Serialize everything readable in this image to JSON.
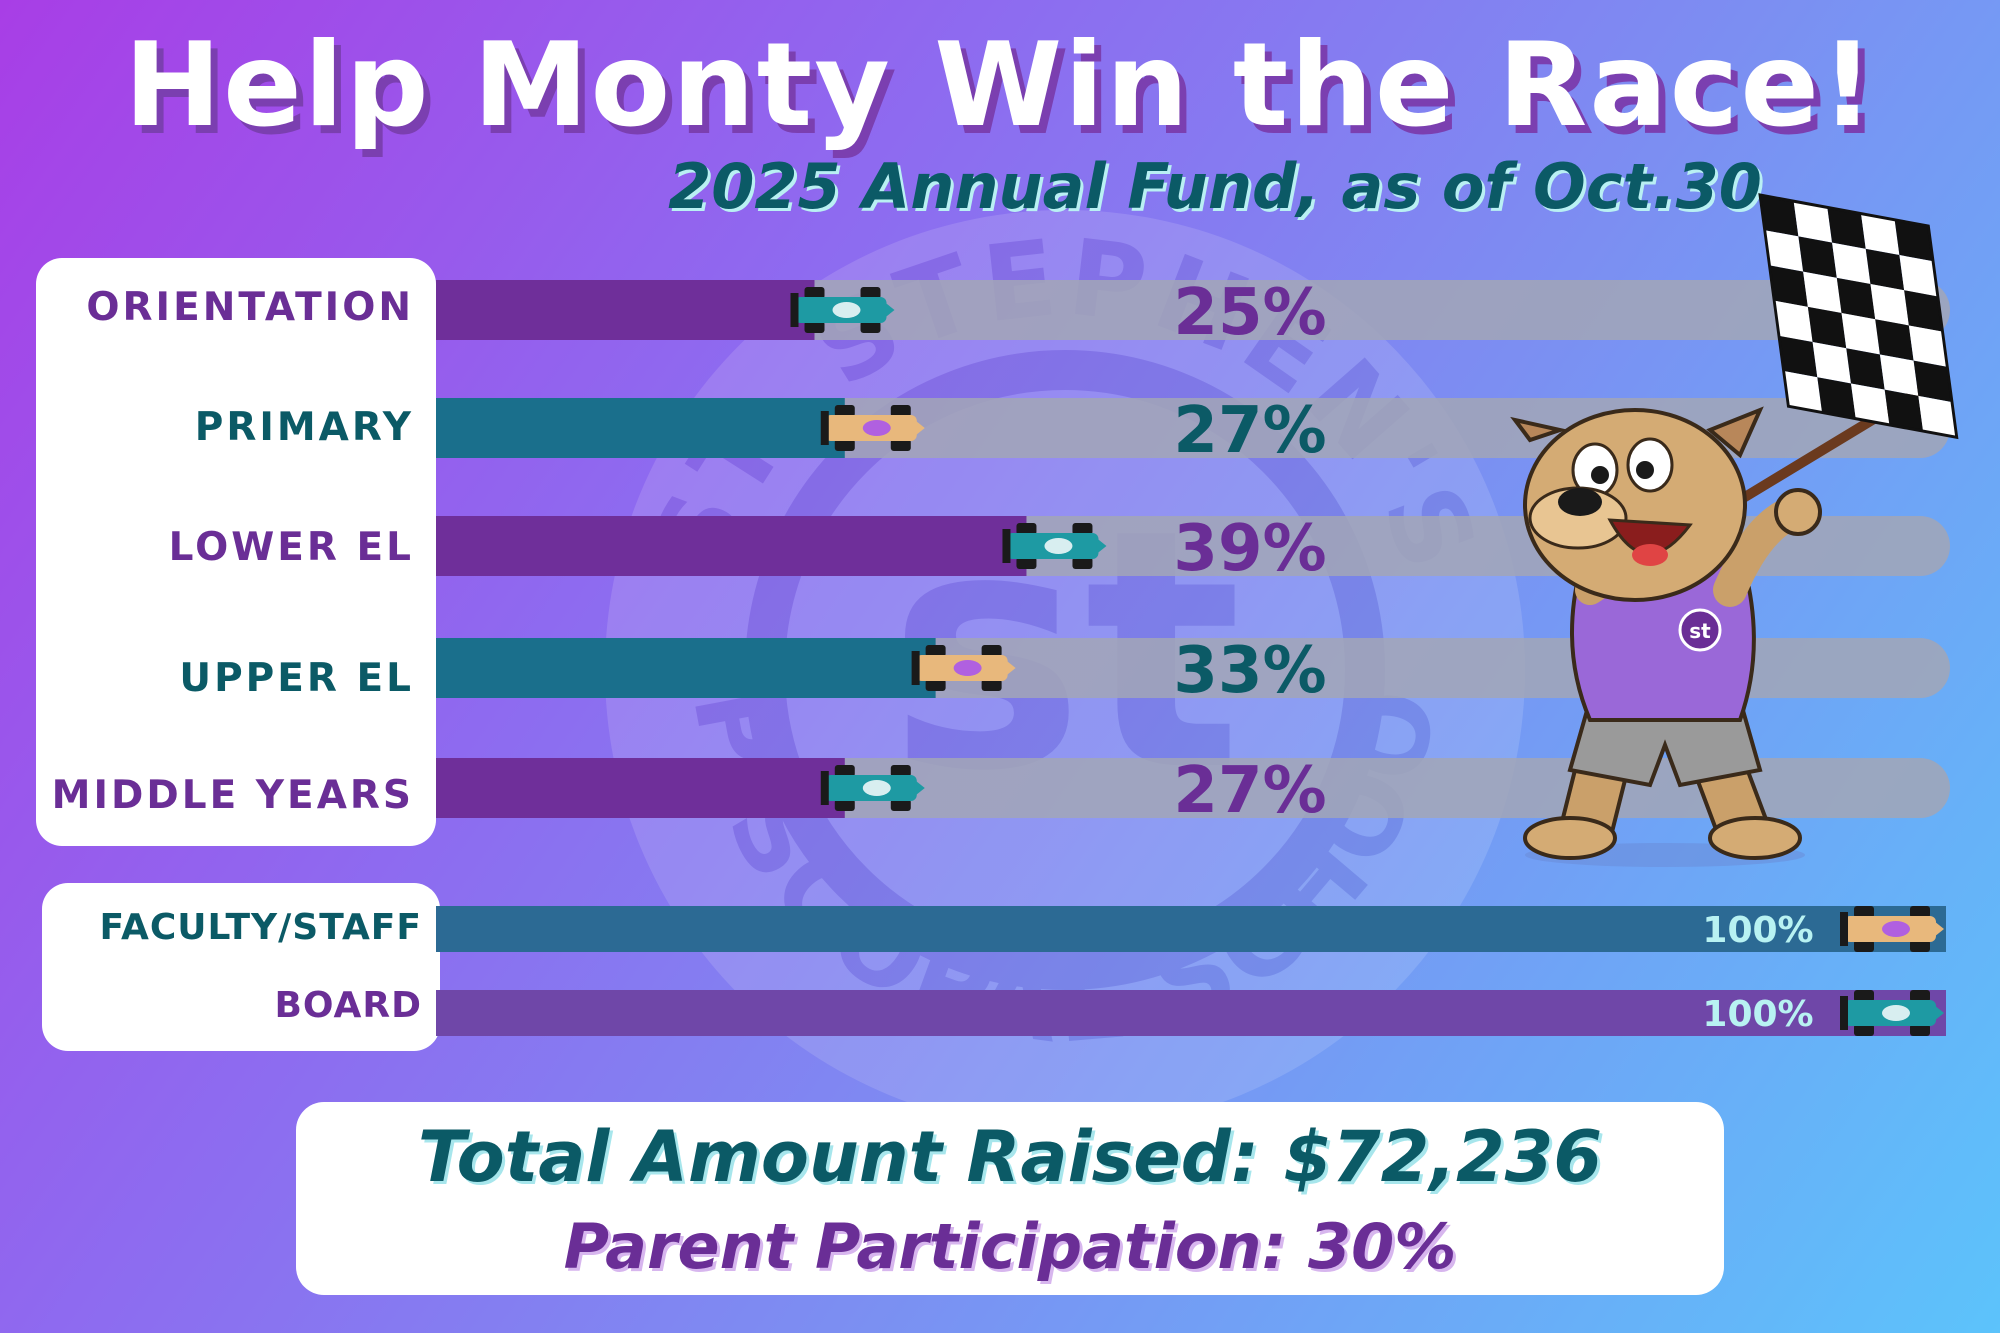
{
  "title": "Help Monty Win the Race!",
  "subtitle": "2025 Annual Fund, as of Oct.30",
  "watermark": {
    "top_text": "ST. STEPHEN'S",
    "bottom_text": "EPISCOPAL SCHOOL",
    "monogram": "st"
  },
  "mascot_badge": "st",
  "colors": {
    "purple": "#6a2e96",
    "teal": "#0b5a66",
    "purple_bar": "#6f2f9a",
    "teal_bar": "#1a6f8c",
    "track": "#a2a6b6"
  },
  "chart_data": {
    "type": "bar",
    "orientation": "horizontal",
    "unit": "%",
    "xlim": [
      0,
      100
    ],
    "categories": [
      "ORIENTATION",
      "PRIMARY",
      "LOWER EL",
      "UPPER EL",
      "MIDDLE YEARS"
    ],
    "values": [
      25,
      27,
      39,
      33,
      27
    ],
    "value_labels": [
      "25%",
      "27%",
      "39%",
      "33%",
      "27%"
    ],
    "secondary": {
      "categories": [
        "FACULTY/STAFF",
        "BOARD"
      ],
      "values": [
        100,
        100
      ],
      "value_labels": [
        "100%",
        "100%"
      ]
    }
  },
  "totals": {
    "amount_line": "Total Amount Raised:  $72,236",
    "participation_line": "Parent Participation:  30%"
  }
}
